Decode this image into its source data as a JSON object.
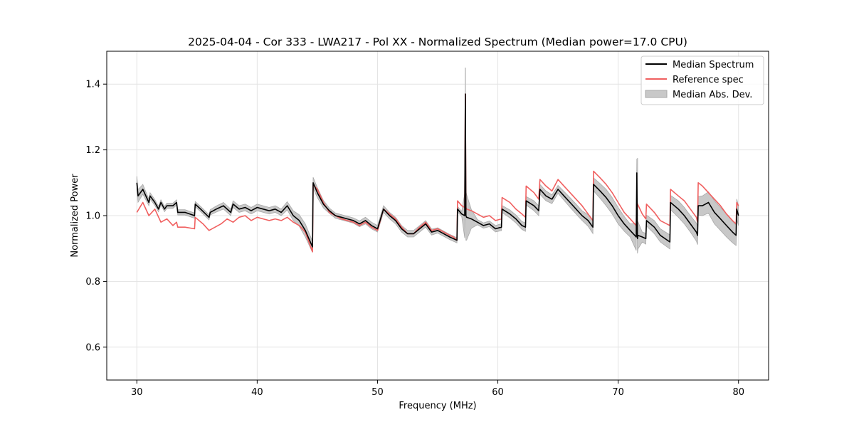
{
  "chart_data": {
    "type": "line",
    "title": "2025-04-04 - Cor 333 - LWA217 - Pol XX - Normalized Spectrum (Median power=17.0 CPU)",
    "xlabel": "Frequency (MHz)",
    "ylabel": "Normalized Power",
    "xlim": [
      27.5,
      82.5
    ],
    "ylim": [
      0.5,
      1.5
    ],
    "xticks": [
      30,
      40,
      50,
      60,
      70,
      80
    ],
    "yticks": [
      0.6,
      0.8,
      1.0,
      1.2,
      1.4
    ],
    "xtick_labels": [
      "30",
      "40",
      "50",
      "60",
      "70",
      "80"
    ],
    "ytick_labels": [
      "0.6",
      "0.8",
      "1.0",
      "1.2",
      "1.4"
    ],
    "grid": true,
    "legend_position": "top-right",
    "legend": [
      "Median Spectrum",
      "Reference spec",
      "Median Abs. Dev."
    ],
    "colors": {
      "median": "#000000",
      "reference": "#f06060",
      "mad_fill": "#c8c8c8",
      "mad_edge": "#a8a8a8",
      "grid": "#e3e3e3"
    },
    "series": [
      {
        "name": "Median Spectrum",
        "x": [
          30.0,
          30.1,
          30.5,
          31.0,
          31.1,
          31.5,
          31.8,
          32.0,
          32.3,
          32.5,
          33.0,
          33.3,
          33.4,
          34.0,
          34.8,
          34.85,
          35.3,
          36.0,
          36.1,
          36.6,
          37.2,
          37.8,
          38.0,
          38.5,
          39.0,
          39.5,
          40.0,
          40.5,
          41.0,
          41.5,
          42.0,
          42.5,
          43.0,
          43.5,
          44.0,
          44.6,
          44.65,
          45.0,
          45.5,
          46.0,
          46.5,
          47.0,
          47.5,
          48.0,
          48.5,
          49.0,
          49.5,
          50.0,
          50.5,
          51.0,
          51.5,
          52.0,
          52.5,
          53.0,
          53.5,
          54.0,
          54.5,
          55.0,
          55.5,
          56.0,
          56.3,
          56.6,
          56.65,
          57.0,
          57.25,
          57.3,
          57.35,
          57.4,
          57.8,
          58.3,
          58.8,
          59.3,
          59.8,
          60.3,
          60.35,
          61.0,
          61.5,
          62.0,
          62.3,
          62.35,
          63.0,
          63.4,
          63.5,
          64.0,
          64.5,
          65.0,
          65.5,
          66.0,
          66.5,
          67.0,
          67.5,
          67.9,
          67.95,
          68.5,
          69.0,
          69.5,
          70.0,
          70.5,
          71.0,
          71.5,
          71.55,
          71.6,
          71.65,
          72.0,
          72.3,
          72.35,
          73.0,
          73.5,
          74.3,
          74.35,
          75.0,
          75.5,
          76.0,
          76.5,
          76.6,
          76.65,
          77.0,
          77.5,
          78.0,
          78.5,
          79.0,
          79.5,
          79.8,
          79.85,
          80.0
        ],
        "values": [
          1.1,
          1.06,
          1.08,
          1.04,
          1.06,
          1.04,
          1.02,
          1.04,
          1.02,
          1.03,
          1.03,
          1.04,
          1.01,
          1.01,
          1.0,
          1.035,
          1.02,
          0.995,
          1.01,
          1.02,
          1.03,
          1.01,
          1.035,
          1.02,
          1.025,
          1.015,
          1.025,
          1.02,
          1.015,
          1.02,
          1.01,
          1.03,
          1.0,
          0.985,
          0.955,
          0.905,
          1.1,
          1.07,
          1.035,
          1.015,
          1.0,
          0.995,
          0.99,
          0.985,
          0.975,
          0.985,
          0.97,
          0.96,
          1.02,
          1.0,
          0.985,
          0.96,
          0.945,
          0.945,
          0.96,
          0.975,
          0.95,
          0.955,
          0.945,
          0.935,
          0.93,
          0.925,
          1.02,
          1.005,
          1.0,
          1.37,
          1.0,
          0.995,
          0.99,
          0.98,
          0.97,
          0.975,
          0.96,
          0.965,
          1.02,
          1.005,
          0.99,
          0.97,
          0.965,
          1.045,
          1.03,
          1.015,
          1.08,
          1.06,
          1.05,
          1.08,
          1.06,
          1.04,
          1.02,
          1.0,
          0.985,
          0.965,
          1.095,
          1.075,
          1.055,
          1.03,
          1.0,
          0.975,
          0.955,
          0.935,
          1.13,
          0.93,
          0.94,
          0.935,
          0.93,
          0.985,
          0.965,
          0.94,
          0.92,
          1.04,
          1.02,
          1.0,
          0.975,
          0.95,
          0.94,
          1.03,
          1.03,
          1.04,
          1.01,
          0.99,
          0.97,
          0.95,
          0.94,
          1.02,
          1.0
        ]
      },
      {
        "name": "Reference spec",
        "x": [
          30.0,
          30.5,
          31.0,
          31.5,
          32.0,
          32.5,
          33.0,
          33.3,
          33.4,
          34.0,
          34.8,
          34.85,
          35.5,
          36.0,
          36.5,
          37.0,
          37.5,
          38.0,
          38.5,
          39.0,
          39.5,
          40.0,
          40.5,
          41.0,
          41.5,
          42.0,
          42.5,
          43.0,
          43.5,
          44.0,
          44.6,
          44.65,
          45.0,
          45.5,
          46.0,
          46.5,
          47.0,
          47.5,
          48.0,
          48.5,
          49.0,
          49.5,
          50.0,
          50.5,
          51.0,
          51.5,
          52.0,
          52.5,
          53.0,
          53.5,
          54.0,
          54.5,
          55.0,
          55.5,
          56.0,
          56.3,
          56.6,
          56.65,
          57.0,
          57.25,
          57.3,
          57.35,
          57.4,
          57.8,
          58.3,
          58.8,
          59.3,
          59.8,
          60.3,
          60.35,
          61.0,
          61.5,
          62.0,
          62.3,
          62.35,
          63.0,
          63.4,
          63.5,
          64.0,
          64.5,
          65.0,
          65.5,
          66.0,
          66.5,
          67.0,
          67.5,
          67.9,
          67.95,
          68.5,
          69.0,
          69.5,
          70.0,
          70.5,
          71.0,
          71.5,
          71.55,
          72.0,
          72.3,
          72.35,
          73.0,
          73.5,
          74.3,
          74.35,
          75.0,
          75.5,
          76.0,
          76.5,
          76.6,
          76.65,
          77.0,
          77.5,
          78.0,
          78.5,
          79.0,
          79.5,
          79.8,
          79.85,
          80.0
        ],
        "values": [
          1.01,
          1.04,
          1.0,
          1.02,
          0.98,
          0.99,
          0.97,
          0.98,
          0.965,
          0.965,
          0.96,
          0.995,
          0.975,
          0.955,
          0.965,
          0.975,
          0.99,
          0.98,
          0.995,
          1.0,
          0.985,
          0.995,
          0.99,
          0.985,
          0.99,
          0.985,
          0.995,
          0.98,
          0.97,
          0.95,
          0.89,
          1.095,
          1.08,
          1.04,
          1.01,
          1.0,
          0.99,
          0.985,
          0.98,
          0.97,
          0.98,
          0.965,
          0.955,
          1.02,
          1.005,
          0.99,
          0.965,
          0.945,
          0.945,
          0.965,
          0.98,
          0.955,
          0.96,
          0.95,
          0.94,
          0.935,
          0.925,
          1.045,
          1.03,
          1.025,
          1.37,
          1.025,
          1.02,
          1.015,
          1.005,
          0.995,
          1.0,
          0.985,
          0.99,
          1.055,
          1.04,
          1.02,
          1.005,
          0.995,
          1.09,
          1.07,
          1.05,
          1.11,
          1.09,
          1.075,
          1.11,
          1.09,
          1.07,
          1.05,
          1.03,
          1.005,
          0.985,
          1.135,
          1.115,
          1.095,
          1.07,
          1.04,
          1.01,
          0.99,
          0.97,
          1.04,
          1.005,
          0.99,
          1.035,
          1.01,
          0.985,
          0.97,
          1.08,
          1.06,
          1.045,
          1.02,
          0.995,
          0.98,
          1.1,
          1.09,
          1.07,
          1.05,
          1.03,
          1.005,
          0.985,
          0.975,
          1.04,
          1.03
        ]
      },
      {
        "name": "Median Abs. Dev.",
        "x": [
          30.0,
          31.0,
          32.0,
          33.0,
          34.0,
          35.0,
          36.0,
          37.0,
          38.0,
          39.0,
          40.0,
          41.0,
          42.0,
          43.0,
          44.0,
          45.0,
          46.0,
          47.0,
          48.0,
          49.0,
          50.0,
          51.0,
          52.0,
          53.0,
          54.0,
          55.0,
          56.0,
          57.0,
          57.3,
          58.0,
          59.0,
          60.0,
          61.0,
          62.0,
          63.0,
          64.0,
          65.0,
          66.0,
          67.0,
          68.0,
          69.0,
          70.0,
          71.0,
          71.6,
          72.0,
          73.0,
          74.0,
          75.0,
          76.0,
          77.0,
          78.0,
          79.0,
          80.0
        ],
        "values": [
          0.02,
          0.01,
          0.008,
          0.008,
          0.008,
          0.008,
          0.008,
          0.01,
          0.01,
          0.01,
          0.01,
          0.01,
          0.01,
          0.015,
          0.02,
          0.015,
          0.008,
          0.008,
          0.008,
          0.01,
          0.01,
          0.01,
          0.01,
          0.01,
          0.01,
          0.008,
          0.008,
          0.008,
          0.08,
          0.008,
          0.008,
          0.01,
          0.012,
          0.012,
          0.015,
          0.015,
          0.012,
          0.015,
          0.015,
          0.02,
          0.025,
          0.025,
          0.02,
          0.045,
          0.015,
          0.02,
          0.02,
          0.025,
          0.025,
          0.03,
          0.035,
          0.035,
          0.03
        ]
      }
    ]
  }
}
